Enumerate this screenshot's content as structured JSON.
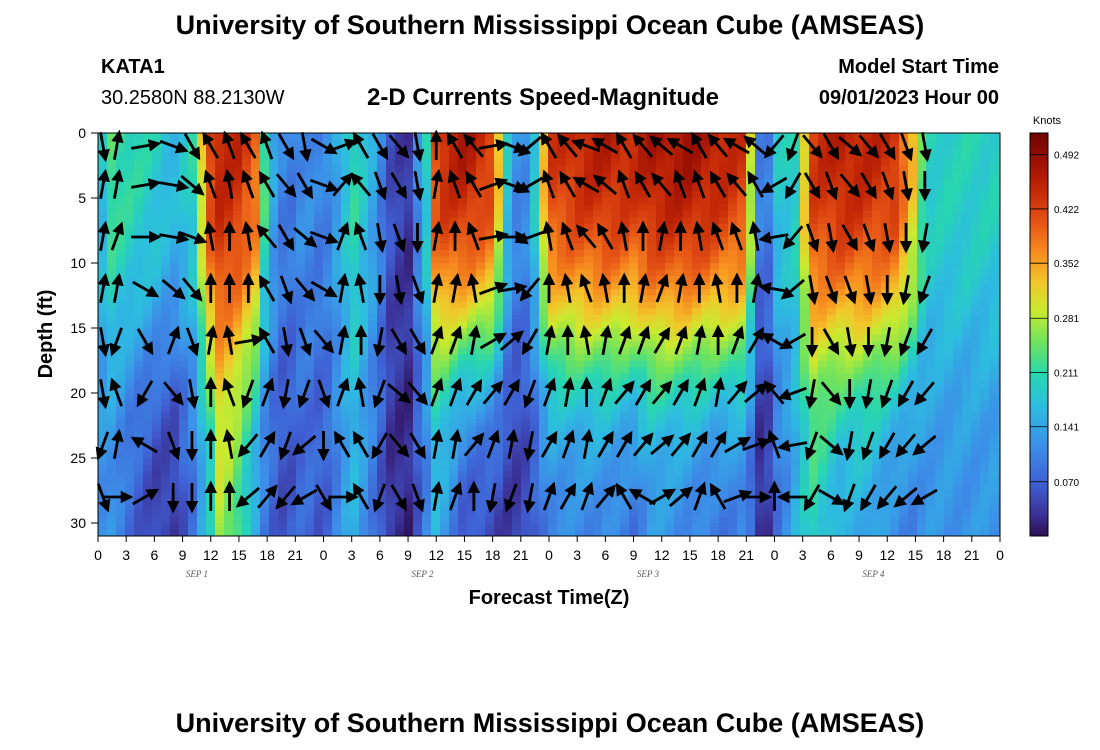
{
  "header": {
    "title": "University of Southern Mississippi Ocean Cube (AMSEAS)",
    "station_id": "KATA1",
    "station_coords": "30.2580N  88.2130W",
    "plot_title": "2-D Currents Speed-Magnitude",
    "model_start_label": "Model Start Time",
    "model_start_value": "09/01/2023 Hour 00"
  },
  "footer": {
    "title": "University of Southern Mississippi Ocean Cube (AMSEAS)"
  },
  "chart_data": {
    "type": "heatmap",
    "title": "2-D Currents Speed-Magnitude",
    "xlabel": "Forecast Time(Z)",
    "ylabel": "Depth (ft)",
    "x_range_hours": [
      0,
      96
    ],
    "ylim": [
      0,
      31
    ],
    "y_ticks": [
      0,
      5,
      10,
      15,
      20,
      25,
      30
    ],
    "x_tick_labels": [
      "0",
      "3",
      "6",
      "9",
      "12",
      "15",
      "18",
      "21",
      "0",
      "3",
      "6",
      "9",
      "12",
      "15",
      "18",
      "21",
      "0",
      "3",
      "6",
      "9",
      "12",
      "15",
      "18",
      "21",
      "0",
      "3",
      "6",
      "9",
      "12",
      "15",
      "18",
      "21",
      "0"
    ],
    "day_labels": [
      {
        "text": "SEP 1",
        "hour": 10
      },
      {
        "text": "SEP 2",
        "hour": 34
      },
      {
        "text": "SEP 3",
        "hour": 58
      },
      {
        "text": "SEP 4",
        "hour": 82
      }
    ],
    "colorbar": {
      "unit": "Knots",
      "min": 0,
      "max": 0.52,
      "ticks": [
        "0.070",
        "0.141",
        "0.211",
        "0.281",
        "0.352",
        "0.422",
        "0.492"
      ]
    },
    "speed_profile_knots": [
      {
        "hour": 0,
        "s": 0.12,
        "b": 0.11
      },
      {
        "hour": 1,
        "s": 0.24,
        "b": 0.12
      },
      {
        "hour": 3,
        "s": 0.22,
        "b": 0.08
      },
      {
        "hour": 6,
        "s": 0.2,
        "b": 0.04
      },
      {
        "hour": 8,
        "s": 0.17,
        "b": 0.03
      },
      {
        "hour": 10,
        "s": 0.2,
        "b": 0.08
      },
      {
        "hour": 12,
        "s": 0.44,
        "b": 0.18
      },
      {
        "hour": 13,
        "s": 0.46,
        "b": 0.28
      },
      {
        "hour": 15,
        "s": 0.45,
        "b": 0.22
      },
      {
        "hour": 17,
        "s": 0.4,
        "b": 0.12
      },
      {
        "hour": 18,
        "s": 0.17,
        "b": 0.08
      },
      {
        "hour": 20,
        "s": 0.09,
        "b": 0.05
      },
      {
        "hour": 22,
        "s": 0.12,
        "b": 0.08
      },
      {
        "hour": 24,
        "s": 0.1,
        "b": 0.06
      },
      {
        "hour": 26,
        "s": 0.16,
        "b": 0.12
      },
      {
        "hour": 27,
        "s": 0.22,
        "b": 0.16
      },
      {
        "hour": 29,
        "s": 0.16,
        "b": 0.1
      },
      {
        "hour": 31,
        "s": 0.06,
        "b": 0.03
      },
      {
        "hour": 33,
        "s": 0.03,
        "b": 0.02
      },
      {
        "hour": 35,
        "s": 0.2,
        "b": 0.1
      },
      {
        "hour": 36,
        "s": 0.45,
        "b": 0.15
      },
      {
        "hour": 39,
        "s": 0.48,
        "b": 0.05
      },
      {
        "hour": 42,
        "s": 0.44,
        "b": 0.04
      },
      {
        "hour": 44,
        "s": 0.12,
        "b": 0.03
      },
      {
        "hour": 46,
        "s": 0.12,
        "b": 0.05
      },
      {
        "hour": 48,
        "s": 0.44,
        "b": 0.1
      },
      {
        "hour": 51,
        "s": 0.46,
        "b": 0.1
      },
      {
        "hour": 54,
        "s": 0.47,
        "b": 0.1
      },
      {
        "hour": 57,
        "s": 0.46,
        "b": 0.08
      },
      {
        "hour": 59,
        "s": 0.48,
        "b": 0.12
      },
      {
        "hour": 63,
        "s": 0.49,
        "b": 0.1
      },
      {
        "hour": 66,
        "s": 0.47,
        "b": 0.08
      },
      {
        "hour": 69,
        "s": 0.44,
        "b": 0.1
      },
      {
        "hour": 70,
        "s": 0.14,
        "b": 0.03
      },
      {
        "hour": 71,
        "s": 0.06,
        "b": 0.01
      },
      {
        "hour": 72,
        "s": 0.18,
        "b": 0.08
      },
      {
        "hour": 73,
        "s": 0.2,
        "b": 0.1
      },
      {
        "hour": 74,
        "s": 0.17,
        "b": 0.14
      },
      {
        "hour": 76,
        "s": 0.44,
        "b": 0.2
      },
      {
        "hour": 79,
        "s": 0.47,
        "b": 0.14
      },
      {
        "hour": 82,
        "s": 0.46,
        "b": 0.14
      },
      {
        "hour": 85,
        "s": 0.45,
        "b": 0.1
      },
      {
        "hour": 87,
        "s": 0.32,
        "b": 0.1
      },
      {
        "hour": 88,
        "s": 0.2,
        "b": 0.12
      }
    ],
    "arrow_hours": [
      0,
      2,
      5,
      8,
      10,
      12,
      14,
      16,
      18,
      20,
      22,
      24,
      26,
      28,
      30,
      32,
      34,
      36,
      38,
      40,
      42,
      44,
      46,
      48,
      50,
      52,
      54,
      56,
      58,
      60,
      62,
      64,
      66,
      68,
      70,
      72,
      74,
      76,
      78,
      80,
      82,
      84,
      86,
      88
    ],
    "arrow_depths_ft": [
      1,
      4,
      8,
      12,
      16,
      20,
      24,
      28
    ],
    "arrow_directions_deg": [
      [
        170,
        10,
        10,
        10,
        170,
        170,
        200,
        160
      ],
      [
        10,
        10,
        20,
        10,
        200,
        340,
        10,
        90
      ],
      [
        80,
        80,
        90,
        120,
        150,
        210,
        300,
        60
      ],
      [
        110,
        100,
        100,
        130,
        20,
        140,
        160,
        180
      ],
      [
        150,
        130,
        110,
        140,
        160,
        170,
        180,
        180
      ],
      [
        330,
        340,
        350,
        0,
        10,
        0,
        0,
        0
      ],
      [
        340,
        350,
        0,
        0,
        350,
        340,
        350,
        0
      ],
      [
        330,
        340,
        350,
        0,
        80,
        200,
        220,
        230
      ],
      [
        340,
        330,
        320,
        330,
        330,
        20,
        30,
        40
      ],
      [
        150,
        140,
        150,
        160,
        170,
        190,
        200,
        220
      ],
      [
        170,
        150,
        130,
        140,
        160,
        200,
        230,
        240
      ],
      [
        120,
        110,
        110,
        120,
        140,
        160,
        180,
        150
      ],
      [
        70,
        40,
        20,
        10,
        10,
        20,
        330,
        90
      ],
      [
        330,
        320,
        340,
        350,
        0,
        350,
        330,
        330
      ],
      [
        150,
        160,
        170,
        180,
        190,
        200,
        210,
        200
      ],
      [
        140,
        150,
        160,
        170,
        150,
        130,
        140,
        150
      ],
      [
        170,
        170,
        180,
        160,
        150,
        140,
        150,
        160
      ],
      [
        0,
        10,
        10,
        10,
        20,
        20,
        10,
        10
      ],
      [
        330,
        340,
        0,
        10,
        20,
        20,
        10,
        20
      ],
      [
        320,
        330,
        340,
        350,
        10,
        30,
        40,
        0
      ],
      [
        80,
        70,
        80,
        70,
        60,
        40,
        20,
        190
      ],
      [
        110,
        110,
        90,
        80,
        50,
        30,
        10,
        200
      ],
      [
        230,
        240,
        250,
        220,
        210,
        200,
        190,
        190
      ],
      [
        330,
        340,
        350,
        0,
        10,
        20,
        30,
        20
      ],
      [
        320,
        330,
        340,
        350,
        0,
        10,
        20,
        30
      ],
      [
        290,
        300,
        320,
        340,
        350,
        0,
        10,
        20
      ],
      [
        300,
        310,
        330,
        350,
        10,
        20,
        30,
        40
      ],
      [
        330,
        340,
        350,
        0,
        20,
        40,
        30,
        330
      ],
      [
        320,
        330,
        0,
        10,
        20,
        30,
        40,
        300
      ],
      [
        310,
        320,
        10,
        20,
        30,
        40,
        50,
        60
      ],
      [
        300,
        340,
        0,
        10,
        20,
        30,
        40,
        50
      ],
      [
        330,
        340,
        350,
        0,
        10,
        20,
        30,
        20
      ],
      [
        320,
        330,
        340,
        350,
        0,
        10,
        30,
        330
      ],
      [
        300,
        320,
        340,
        0,
        20,
        40,
        60,
        70
      ],
      [
        310,
        330,
        350,
        10,
        30,
        50,
        70,
        90
      ],
      [
        220,
        240,
        260,
        280,
        300,
        320,
        340,
        0
      ],
      [
        200,
        210,
        220,
        230,
        240,
        250,
        260,
        270
      ],
      [
        140,
        150,
        160,
        170,
        180,
        190,
        200,
        210
      ],
      [
        150,
        160,
        170,
        160,
        150,
        140,
        130,
        120
      ],
      [
        130,
        140,
        150,
        160,
        170,
        180,
        190,
        200
      ],
      [
        140,
        150,
        160,
        170,
        180,
        190,
        200,
        210
      ],
      [
        150,
        160,
        170,
        180,
        190,
        200,
        210,
        220
      ],
      [
        160,
        170,
        180,
        190,
        200,
        210,
        220,
        230
      ],
      [
        170,
        180,
        190,
        200,
        210,
        220,
        230,
        240
      ]
    ]
  }
}
